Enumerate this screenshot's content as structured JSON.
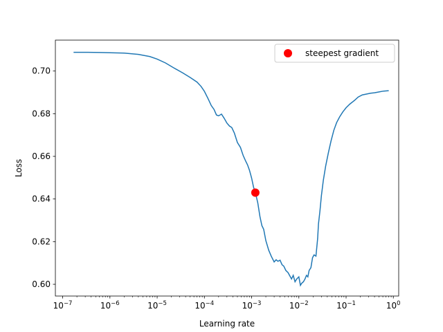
{
  "chart_data": {
    "type": "line",
    "title": "",
    "xlabel": "Learning rate",
    "ylabel": "Loss",
    "xscale": "log",
    "xlim": [
      7e-08,
      1.3
    ],
    "ylim": [
      0.5945,
      0.7145
    ],
    "grid": false,
    "legend_position": "top-right",
    "x_ticks": [
      {
        "value": 1e-07,
        "base": "10",
        "exp": "−7"
      },
      {
        "value": 1e-06,
        "base": "10",
        "exp": "−6"
      },
      {
        "value": 1e-05,
        "base": "10",
        "exp": "−5"
      },
      {
        "value": 0.0001,
        "base": "10",
        "exp": "−4"
      },
      {
        "value": 0.001,
        "base": "10",
        "exp": "−3"
      },
      {
        "value": 0.01,
        "base": "10",
        "exp": "−2"
      },
      {
        "value": 0.1,
        "base": "10",
        "exp": "−1"
      },
      {
        "value": 1,
        "base": "10",
        "exp": "0"
      }
    ],
    "y_ticks": [
      {
        "value": 0.6,
        "label": "0.60"
      },
      {
        "value": 0.62,
        "label": "0.62"
      },
      {
        "value": 0.64,
        "label": "0.64"
      },
      {
        "value": 0.66,
        "label": "0.66"
      },
      {
        "value": 0.68,
        "label": "0.68"
      },
      {
        "value": 0.7,
        "label": "0.70"
      }
    ],
    "series": [
      {
        "name": "",
        "color": "#1f77b4",
        "x": [
          1.7e-07,
          3e-07,
          6e-07,
          1e-06,
          2e-06,
          4e-06,
          7e-06,
          1e-05,
          1.5e-05,
          2.2e-05,
          3.5e-05,
          5e-05,
          7e-05,
          8.5e-05,
          0.0001,
          0.00012,
          0.00014,
          0.00016,
          0.00018,
          0.0002,
          0.00023,
          0.00026,
          0.0003,
          0.00034,
          0.00038,
          0.00043,
          0.0005,
          0.00058,
          0.00066,
          0.00074,
          0.00082,
          0.0009,
          0.001,
          0.0011,
          0.0012,
          0.00135,
          0.0015,
          0.00165,
          0.0018,
          0.002,
          0.0023,
          0.0026,
          0.003,
          0.0033,
          0.0036,
          0.004,
          0.0044,
          0.0048,
          0.0053,
          0.0059,
          0.0065,
          0.007,
          0.0076,
          0.0083,
          0.009,
          0.01,
          0.0108,
          0.0115,
          0.0125,
          0.0135,
          0.0145,
          0.0155,
          0.0165,
          0.018,
          0.0195,
          0.021,
          0.023,
          0.025,
          0.026,
          0.028,
          0.03,
          0.033,
          0.037,
          0.042,
          0.048,
          0.055,
          0.063,
          0.073,
          0.085,
          0.1,
          0.12,
          0.15,
          0.18,
          0.22,
          0.27,
          0.33,
          0.4,
          0.5,
          0.62,
          0.8
        ],
        "y": [
          0.7088,
          0.7088,
          0.7087,
          0.7086,
          0.7084,
          0.7078,
          0.7068,
          0.7056,
          0.7038,
          0.7016,
          0.6991,
          0.697,
          0.6948,
          0.6928,
          0.6905,
          0.687,
          0.6838,
          0.682,
          0.6794,
          0.679,
          0.6798,
          0.678,
          0.6756,
          0.6742,
          0.6735,
          0.671,
          0.6665,
          0.6642,
          0.6605,
          0.658,
          0.656,
          0.6535,
          0.6498,
          0.6455,
          0.643,
          0.6382,
          0.6318,
          0.6275,
          0.6258,
          0.6205,
          0.616,
          0.6132,
          0.6105,
          0.6115,
          0.6108,
          0.6113,
          0.6092,
          0.6085,
          0.6065,
          0.6055,
          0.6038,
          0.6025,
          0.6042,
          0.6012,
          0.6025,
          0.6035,
          0.5995,
          0.6005,
          0.6012,
          0.6025,
          0.6042,
          0.6035,
          0.6065,
          0.6078,
          0.6125,
          0.6138,
          0.6132,
          0.6215,
          0.6282,
          0.6345,
          0.6415,
          0.6488,
          0.6555,
          0.6615,
          0.6672,
          0.6722,
          0.6758,
          0.6785,
          0.6808,
          0.6828,
          0.6845,
          0.6862,
          0.6878,
          0.6888,
          0.6892,
          0.6896,
          0.6898,
          0.6902,
          0.6906,
          0.6908
        ]
      }
    ],
    "markers": [
      {
        "name": "steepest gradient",
        "x": 0.0012,
        "y": 0.643,
        "color": "#ff0000"
      }
    ]
  }
}
